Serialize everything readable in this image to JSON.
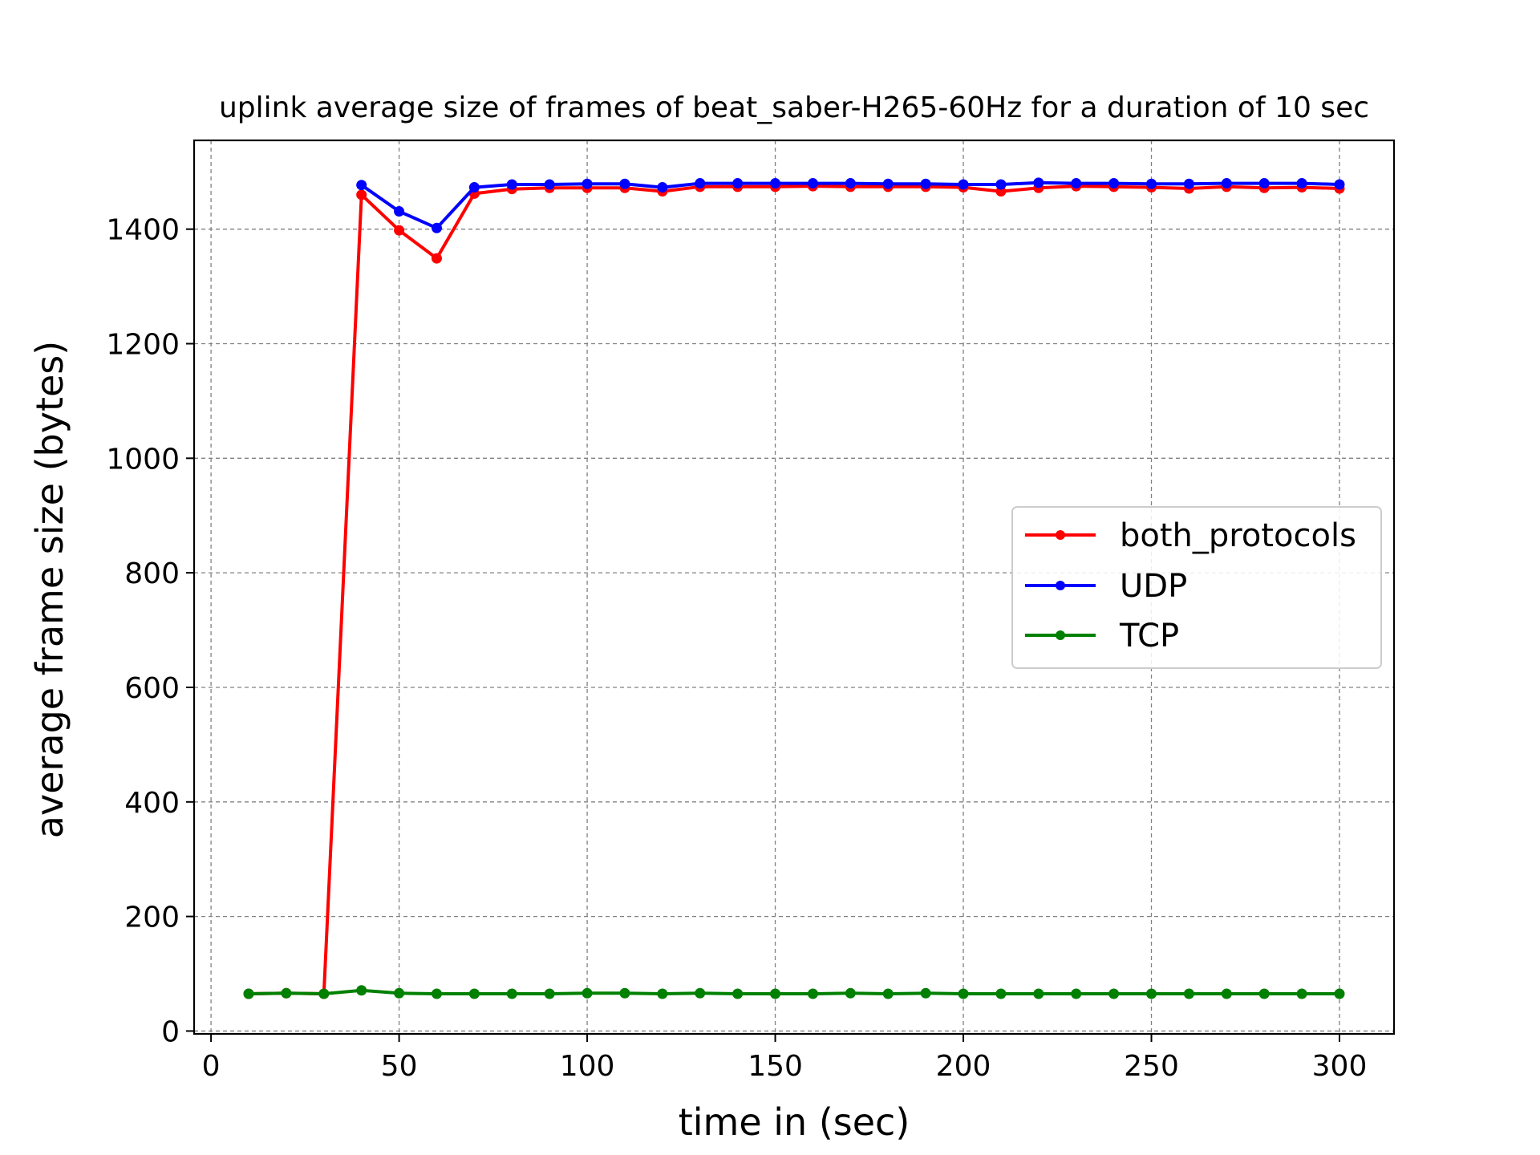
{
  "chart_data": {
    "type": "line",
    "title": "uplink average size of frames of beat_saber-H265-60Hz for a duration of 10 sec",
    "xlabel": "time in (sec)",
    "ylabel": "average frame size (bytes)",
    "xlim": [
      -4.5,
      314.5
    ],
    "ylim": [
      -5,
      1555
    ],
    "xticks": [
      0,
      50,
      100,
      150,
      200,
      250,
      300
    ],
    "yticks": [
      0,
      200,
      400,
      600,
      800,
      1000,
      1200,
      1400
    ],
    "grid": true,
    "legend_position": "center-right",
    "series": [
      {
        "name": "both_protocols",
        "color": "#ff0000",
        "x": [
          10,
          20,
          30,
          40,
          50,
          60,
          70,
          80,
          90,
          100,
          110,
          120,
          130,
          140,
          150,
          160,
          170,
          180,
          190,
          200,
          210,
          220,
          230,
          240,
          250,
          260,
          270,
          280,
          290,
          300
        ],
        "values": [
          65,
          66,
          65,
          1460,
          1398,
          1349,
          1462,
          1470,
          1472,
          1472,
          1472,
          1466,
          1474,
          1474,
          1474,
          1475,
          1474,
          1474,
          1474,
          1473,
          1466,
          1472,
          1475,
          1474,
          1473,
          1471,
          1474,
          1472,
          1473,
          1471
        ]
      },
      {
        "name": "UDP",
        "color": "#0000ff",
        "x": [
          40,
          50,
          60,
          70,
          80,
          90,
          100,
          110,
          120,
          130,
          140,
          150,
          160,
          170,
          180,
          190,
          200,
          210,
          220,
          230,
          240,
          250,
          260,
          270,
          280,
          290,
          300
        ],
        "values": [
          1477,
          1431,
          1402,
          1473,
          1478,
          1478,
          1479,
          1479,
          1473,
          1480,
          1480,
          1480,
          1480,
          1480,
          1479,
          1479,
          1478,
          1478,
          1481,
          1480,
          1480,
          1479,
          1479,
          1480,
          1480,
          1480,
          1478
        ]
      },
      {
        "name": "TCP",
        "color": "#008000",
        "x": [
          10,
          20,
          30,
          40,
          50,
          60,
          70,
          80,
          90,
          100,
          110,
          120,
          130,
          140,
          150,
          160,
          170,
          180,
          190,
          200,
          210,
          220,
          230,
          240,
          250,
          260,
          270,
          280,
          290,
          300
        ],
        "values": [
          65,
          66,
          65,
          71,
          66,
          65,
          65,
          65,
          65,
          66,
          66,
          65,
          66,
          65,
          65,
          65,
          66,
          65,
          66,
          65,
          65,
          65,
          65,
          65,
          65,
          65,
          65,
          65,
          65,
          65
        ]
      }
    ]
  }
}
